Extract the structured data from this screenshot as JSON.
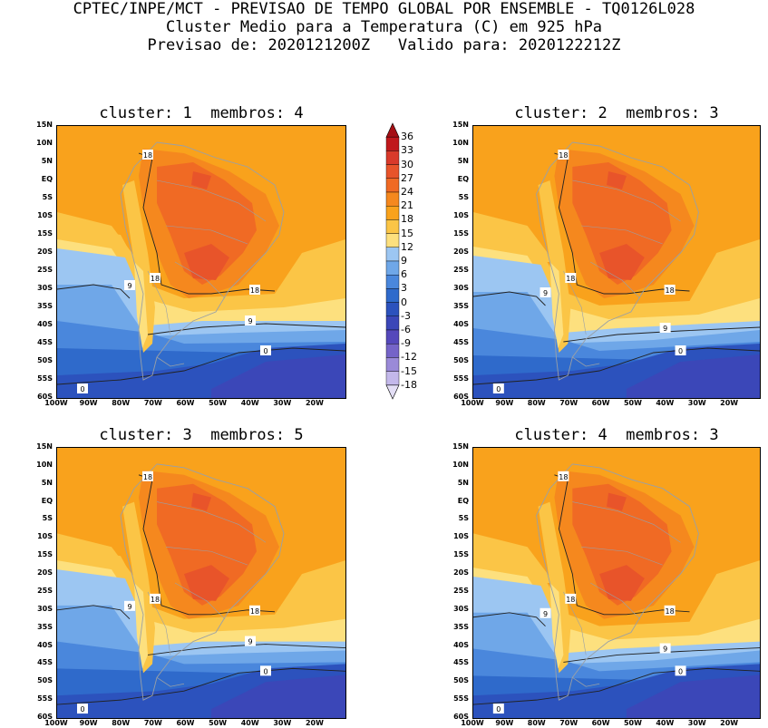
{
  "header": {
    "line1": "CPTEC/INPE/MCT - PREVISAO DE TEMPO GLOBAL POR ENSEMBLE - TQ0126L028",
    "line2": "Cluster Medio para a Temperatura (C) em 925 hPa",
    "line3": "Previsao de: 2020121200Z   Valido para: 2020122212Z"
  },
  "panels": [
    {
      "title": "cluster: 1  membros: 4"
    },
    {
      "title": "cluster: 2  membros: 3"
    },
    {
      "title": "cluster: 3  membros: 5"
    },
    {
      "title": "cluster: 4  membros: 3"
    }
  ],
  "axes": {
    "lat_labels": [
      "15N",
      "10N",
      "5N",
      "EQ",
      "5S",
      "10S",
      "15S",
      "20S",
      "25S",
      "30S",
      "35S",
      "40S",
      "45S",
      "50S",
      "55S",
      "60S"
    ],
    "lon_labels": [
      "100W",
      "90W",
      "80W",
      "70W",
      "60W",
      "50W",
      "40W",
      "30W",
      "20W"
    ]
  },
  "contour_labels": {
    "l18": "18",
    "l9": "9",
    "l0": "0"
  },
  "colorbar": {
    "levels": [
      "36",
      "33",
      "30",
      "27",
      "24",
      "21",
      "18",
      "15",
      "12",
      "9",
      "6",
      "3",
      "0",
      "-3",
      "-6",
      "-9",
      "-12",
      "-15",
      "-18"
    ],
    "colors": [
      "#a50f15",
      "#c0181c",
      "#d93a2a",
      "#e8542a",
      "#f06a24",
      "#f5881e",
      "#f9a21c",
      "#fbc546",
      "#fde07e",
      "#9cc6f2",
      "#6fa7e8",
      "#4a87dc",
      "#2f6acb",
      "#2c52bd",
      "#3b47b8",
      "#5548bb",
      "#7564c8",
      "#9a8ad8",
      "#c3b8ea",
      "#e3def5"
    ]
  }
}
